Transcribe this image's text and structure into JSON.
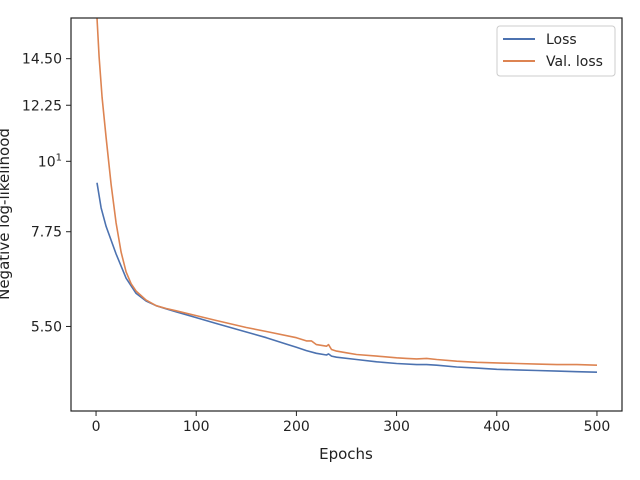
{
  "chart_data": {
    "type": "line",
    "title": "",
    "xlabel": "Epochs",
    "ylabel": "Negative log-likelihood",
    "yscale": "log",
    "xlim": [
      -25,
      525
    ],
    "ylim": [
      4.05,
      16.8
    ],
    "grid": false,
    "legend_position": "top-right",
    "x_ticks": [
      0,
      100,
      200,
      300,
      400,
      500
    ],
    "x_tick_labels": [
      "0",
      "100",
      "200",
      "300",
      "400",
      "500"
    ],
    "y_ticks": [
      5.5,
      7.75,
      10,
      12.25,
      14.5
    ],
    "y_tick_labels": [
      "5.50",
      "7.75",
      "10",
      "12.25",
      "14.50"
    ],
    "y_tick_sup": [
      "",
      "",
      "1",
      "",
      ""
    ],
    "series": [
      {
        "name": "Loss",
        "color": "#4c72b0",
        "x": [
          1,
          5,
          10,
          20,
          30,
          40,
          50,
          60,
          70,
          80,
          100,
          120,
          150,
          170,
          190,
          200,
          210,
          220,
          230,
          232,
          235,
          240,
          260,
          280,
          300,
          320,
          330,
          340,
          360,
          380,
          400,
          420,
          440,
          460,
          480,
          500
        ],
        "y": [
          9.25,
          8.45,
          7.9,
          7.15,
          6.55,
          6.2,
          6.03,
          5.93,
          5.86,
          5.8,
          5.68,
          5.56,
          5.39,
          5.28,
          5.16,
          5.1,
          5.04,
          4.99,
          4.96,
          4.98,
          4.94,
          4.92,
          4.88,
          4.84,
          4.81,
          4.79,
          4.79,
          4.78,
          4.75,
          4.73,
          4.71,
          4.7,
          4.69,
          4.68,
          4.67,
          4.66
        ]
      },
      {
        "name": "Val. loss",
        "color": "#dd8452",
        "x": [
          1,
          3,
          6,
          10,
          15,
          20,
          25,
          30,
          35,
          40,
          50,
          60,
          70,
          80,
          100,
          120,
          150,
          170,
          200,
          210,
          215,
          220,
          230,
          232,
          235,
          240,
          250,
          260,
          280,
          300,
          310,
          320,
          330,
          340,
          360,
          380,
          400,
          420,
          440,
          460,
          480,
          500
        ],
        "y": [
          16.8,
          14.6,
          12.6,
          10.9,
          9.2,
          8.0,
          7.2,
          6.7,
          6.42,
          6.25,
          6.05,
          5.93,
          5.87,
          5.82,
          5.72,
          5.62,
          5.48,
          5.4,
          5.28,
          5.22,
          5.22,
          5.15,
          5.12,
          5.15,
          5.06,
          5.03,
          5.0,
          4.97,
          4.94,
          4.91,
          4.9,
          4.89,
          4.9,
          4.88,
          4.85,
          4.83,
          4.82,
          4.81,
          4.8,
          4.79,
          4.79,
          4.78
        ]
      }
    ]
  }
}
